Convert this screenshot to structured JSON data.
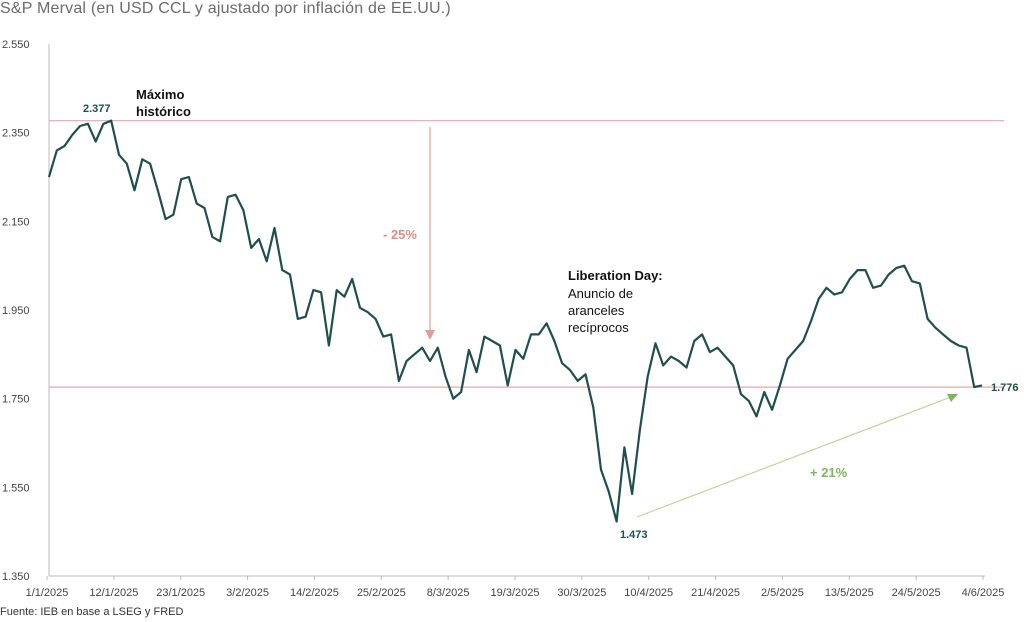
{
  "title": "S&P Merval (en USD CCL y ajustado por inflación de EE.UU.)",
  "source": "Fuente: IEB en base a LSEG y FRED",
  "colors": {
    "line": "#1f4e4e",
    "refline": "#e8a7a7",
    "arrow_red": "#e39b9b",
    "arrow_green": "#b8d89a",
    "label_green": "#7db55c",
    "label_red": "#e08a8a"
  },
  "chart_data": {
    "type": "line",
    "title": "S&P Merval (en USD CCL y ajustado por inflación de EE.UU.)",
    "ylim": [
      1350,
      2550
    ],
    "yticks": [
      "2.550",
      "2.350",
      "2.150",
      "1.950",
      "1.750",
      "1.550",
      "1.350"
    ],
    "ytick_values": [
      2550,
      2350,
      2150,
      1950,
      1750,
      1550,
      1350
    ],
    "xtick_labels": [
      "1/1/2025",
      "12/1/2025",
      "23/1/2025",
      "3/2/2025",
      "14/2/2025",
      "25/2/2025",
      "8/3/2025",
      "19/3/2025",
      "30/3/2025",
      "10/4/2025",
      "21/4/2025",
      "2/5/2025",
      "13/5/2025",
      "24/5/2025",
      "4/6/2025"
    ],
    "grid": false,
    "reference_lines": [
      2377,
      1776
    ],
    "series": [
      {
        "values": [
          2250,
          2310,
          2320,
          2345,
          2365,
          2370,
          2330,
          2370,
          2377,
          2300,
          2280,
          2220,
          2290,
          2280,
          2220,
          2155,
          2165,
          2245,
          2250,
          2190,
          2180,
          2115,
          2105,
          2205,
          2210,
          2175,
          2090,
          2110,
          2060,
          2135,
          2040,
          2030,
          1930,
          1935,
          1995,
          1990,
          1870,
          1995,
          1980,
          2020,
          1955,
          1945,
          1930,
          1890,
          1895,
          1790,
          1835,
          1850,
          1865,
          1835,
          1865,
          1800,
          1750,
          1765,
          1860,
          1810,
          1890,
          1880,
          1870,
          1780,
          1860,
          1840,
          1895,
          1895,
          1920,
          1880,
          1830,
          1815,
          1790,
          1805,
          1730,
          1590,
          1540,
          1473,
          1640,
          1535,
          1680,
          1800,
          1875,
          1825,
          1845,
          1835,
          1820,
          1880,
          1895,
          1855,
          1865,
          1845,
          1825,
          1760,
          1745,
          1710,
          1765,
          1725,
          1780,
          1840,
          1860,
          1880,
          1925,
          1975,
          2000,
          1985,
          1990,
          2020,
          2040,
          2040,
          2000,
          2005,
          2030,
          2045,
          2050,
          2015,
          2010,
          1930,
          1910,
          1895,
          1880,
          1870,
          1865,
          1776,
          1780
        ]
      }
    ],
    "annotations": {
      "max_label": "2.377",
      "max_title_line1": "Máximo",
      "max_title_line2": "histórico",
      "drop_label": "- 25%",
      "event_title": "Liberation Day:",
      "event_line1": "Anuncio de",
      "event_line2": "aranceles",
      "event_line3": "recíprocos",
      "min_label": "1.473",
      "rise_label": "+ 21%",
      "last_label": "1.776"
    }
  }
}
